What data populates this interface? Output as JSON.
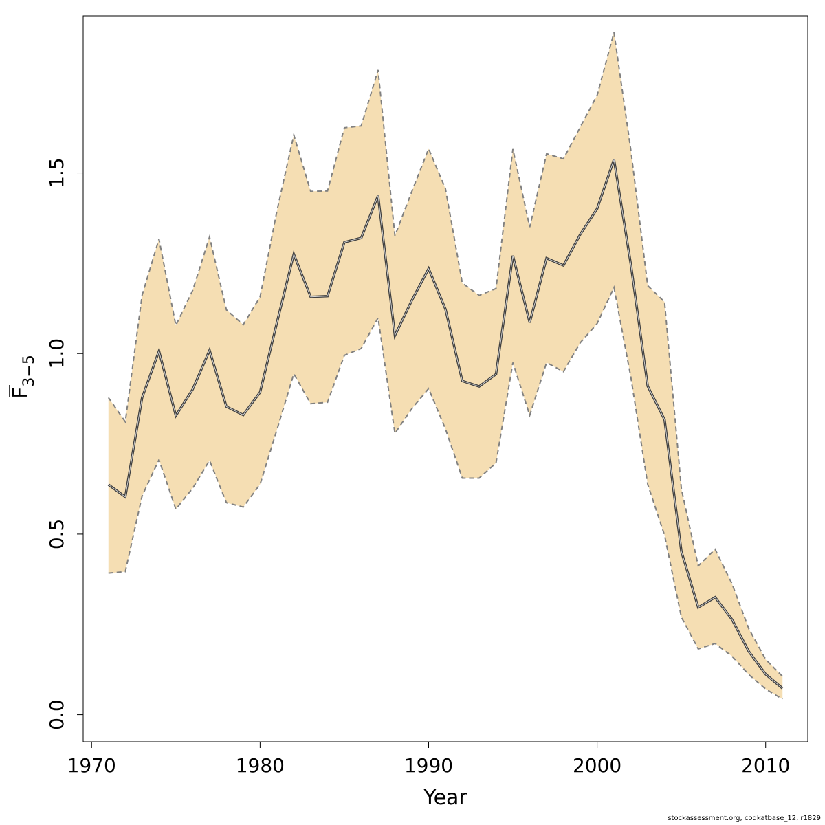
{
  "chart_data": {
    "type": "area",
    "xlabel": "Year",
    "ylabel": {
      "main": "F",
      "sub": "3−5"
    },
    "xlim": [
      1969.5,
      2012.5
    ],
    "ylim": [
      -0.075,
      1.935
    ],
    "xticks": [
      1970,
      1980,
      1990,
      2000,
      2010
    ],
    "xtick_labels": [
      "1970",
      "1980",
      "1990",
      "2000",
      "2010"
    ],
    "yticks": [
      0.0,
      0.5,
      1.0,
      1.5
    ],
    "ytick_labels": [
      "0.0",
      "0.5",
      "1.0",
      "1.5"
    ],
    "grid": false,
    "colors": {
      "band": "#f5deb3",
      "bound_line": "#808080",
      "estimate_line": "#404040"
    },
    "x": [
      1971,
      1972,
      1973,
      1974,
      1975,
      1976,
      1977,
      1978,
      1979,
      1980,
      1981,
      1982,
      1983,
      1984,
      1985,
      1986,
      1987,
      1988,
      1989,
      1990,
      1991,
      1992,
      1993,
      1994,
      1995,
      1996,
      1997,
      1998,
      1999,
      2000,
      2001,
      2002,
      2003,
      2004,
      2005,
      2006,
      2007,
      2008,
      2009,
      2010,
      2011
    ],
    "series": [
      {
        "role": "estimate",
        "values": [
          0.637,
          0.603,
          0.878,
          1.007,
          0.828,
          0.901,
          1.009,
          0.853,
          0.83,
          0.893,
          1.086,
          1.275,
          1.157,
          1.159,
          1.308,
          1.32,
          1.437,
          1.05,
          1.147,
          1.235,
          1.123,
          0.924,
          0.909,
          0.943,
          1.271,
          1.086,
          1.264,
          1.244,
          1.33,
          1.401,
          1.537,
          1.247,
          0.91,
          0.817,
          0.452,
          0.297,
          0.325,
          0.264,
          0.175,
          0.112,
          0.073
        ]
      },
      {
        "role": "upper",
        "values": [
          0.878,
          0.811,
          1.162,
          1.317,
          1.078,
          1.175,
          1.323,
          1.121,
          1.08,
          1.157,
          1.395,
          1.605,
          1.449,
          1.45,
          1.625,
          1.63,
          1.785,
          1.326,
          1.448,
          1.567,
          1.456,
          1.195,
          1.161,
          1.18,
          1.566,
          1.35,
          1.553,
          1.539,
          1.627,
          1.715,
          1.889,
          1.563,
          1.188,
          1.143,
          0.625,
          0.412,
          0.458,
          0.363,
          0.238,
          0.153,
          0.106
        ]
      },
      {
        "role": "lower",
        "values": [
          0.392,
          0.396,
          0.606,
          0.706,
          0.569,
          0.627,
          0.704,
          0.587,
          0.575,
          0.638,
          0.789,
          0.944,
          0.861,
          0.865,
          0.995,
          1.014,
          1.099,
          0.779,
          0.847,
          0.903,
          0.791,
          0.655,
          0.655,
          0.697,
          0.975,
          0.829,
          0.975,
          0.95,
          1.03,
          1.083,
          1.183,
          0.935,
          0.638,
          0.497,
          0.27,
          0.182,
          0.197,
          0.162,
          0.111,
          0.071,
          0.043
        ]
      }
    ]
  },
  "footnote": "stockassessment.org, codkatbase_12, r1829"
}
